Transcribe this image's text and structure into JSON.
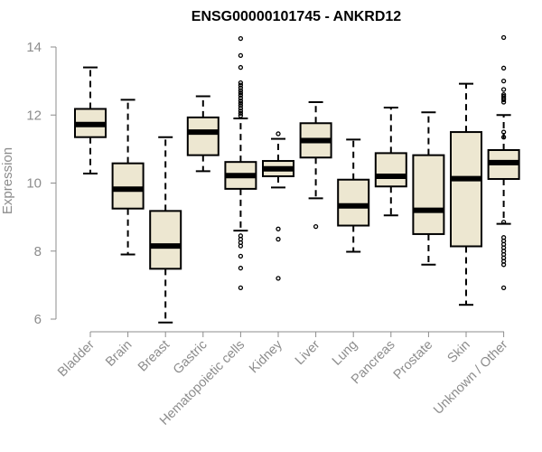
{
  "chart_data": {
    "type": "boxplot",
    "title": "ENSG00000101745 - ANKRD12",
    "ylabel": "Expression",
    "xlabel": "",
    "ylim": [
      6,
      14
    ],
    "yticks": [
      6,
      8,
      10,
      12,
      14
    ],
    "grid": false,
    "box_fill": "#ede7d1",
    "categories": [
      "Bladder",
      "Brain",
      "Breast",
      "Gastric",
      "Hematopoietic cells",
      "Kidney",
      "Liver",
      "Lung",
      "Pancreas",
      "Prostate",
      "Skin",
      "Unknown / Other"
    ],
    "boxes": [
      {
        "min": 10.28,
        "q1": 11.35,
        "median": 11.72,
        "q3": 12.18,
        "max": 13.4,
        "outliers": []
      },
      {
        "min": 7.9,
        "q1": 9.25,
        "median": 9.82,
        "q3": 10.58,
        "max": 12.45,
        "outliers": []
      },
      {
        "min": 5.9,
        "q1": 7.48,
        "median": 8.15,
        "q3": 9.18,
        "max": 11.35,
        "outliers": []
      },
      {
        "min": 10.35,
        "q1": 10.82,
        "median": 11.5,
        "q3": 11.93,
        "max": 12.55,
        "outliers": []
      },
      {
        "min": 8.6,
        "q1": 9.83,
        "median": 10.22,
        "q3": 10.62,
        "max": 11.9,
        "outliers": [
          14.25,
          13.75,
          13.4,
          12.95,
          12.88,
          12.8,
          12.72,
          12.65,
          12.58,
          12.5,
          12.42,
          12.35,
          12.28,
          12.2,
          12.12,
          12.05,
          11.98,
          8.45,
          8.35,
          8.25,
          8.15,
          7.85,
          7.5,
          6.92
        ]
      },
      {
        "min": 9.87,
        "q1": 10.2,
        "median": 10.42,
        "q3": 10.65,
        "max": 11.3,
        "outliers": [
          11.45,
          8.65,
          8.35,
          7.2
        ]
      },
      {
        "min": 9.55,
        "q1": 10.75,
        "median": 11.25,
        "q3": 11.76,
        "max": 12.38,
        "outliers": [
          8.72
        ]
      },
      {
        "min": 7.98,
        "q1": 8.75,
        "median": 9.33,
        "q3": 10.1,
        "max": 11.28,
        "outliers": []
      },
      {
        "min": 9.05,
        "q1": 9.9,
        "median": 10.2,
        "q3": 10.88,
        "max": 12.22,
        "outliers": []
      },
      {
        "min": 7.6,
        "q1": 8.5,
        "median": 9.2,
        "q3": 10.82,
        "max": 12.08,
        "outliers": []
      },
      {
        "min": 6.42,
        "q1": 8.14,
        "median": 10.13,
        "q3": 11.5,
        "max": 12.92,
        "outliers": []
      },
      {
        "min": 8.8,
        "q1": 10.12,
        "median": 10.6,
        "q3": 10.97,
        "max": 12.0,
        "outliers": [
          14.28,
          13.38,
          13.0,
          12.75,
          12.6,
          12.55,
          12.5,
          12.45,
          12.38,
          11.5,
          11.35,
          8.85,
          8.4,
          8.3,
          8.2,
          8.1,
          8.0,
          7.9,
          7.8,
          7.7,
          7.6,
          6.92
        ]
      }
    ]
  }
}
